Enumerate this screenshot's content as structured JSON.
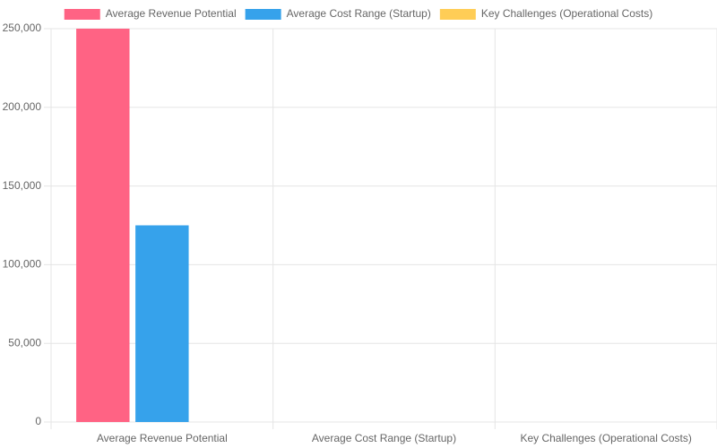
{
  "chart_data": {
    "type": "bar",
    "categories": [
      "Average Revenue Potential",
      "Average Cost Range (Startup)",
      "Key Challenges (Operational Costs)"
    ],
    "series": [
      {
        "name": "Average Revenue Potential",
        "color": "#ff6384",
        "values": [
          250000,
          null,
          null
        ]
      },
      {
        "name": "Average Cost Range (Startup)",
        "color": "#36a2eb",
        "values": [
          125000,
          null,
          null
        ]
      },
      {
        "name": "Key Challenges (Operational Costs)",
        "color": "#ffcd56",
        "values": [
          0,
          null,
          null
        ]
      }
    ],
    "ylim": [
      0,
      250000
    ],
    "yticks": [
      0,
      {
        "value": 50000,
        "label": "50,000"
      },
      {
        "value": 100000,
        "label": "100,000"
      },
      {
        "value": 150000,
        "label": "150,000"
      },
      {
        "value": 200000,
        "label": "200,000"
      },
      {
        "value": 250000,
        "label": "250,000"
      }
    ],
    "grid": true,
    "legend": "top"
  }
}
